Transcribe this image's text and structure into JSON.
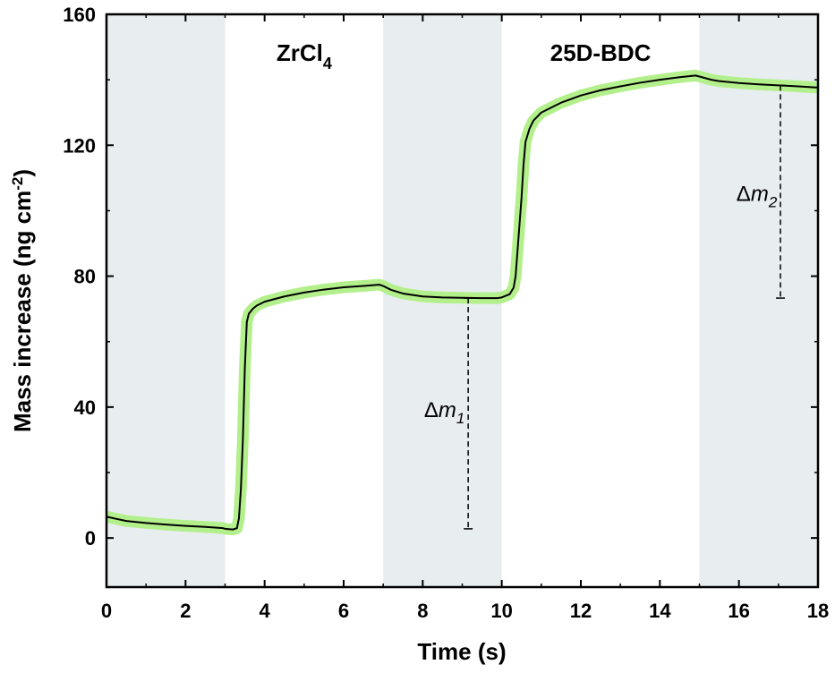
{
  "chart_data": {
    "type": "line",
    "title": "",
    "xlabel": "Time (s)",
    "ylabel": {
      "main": "Mass increase (ng cm",
      "sup": "-2",
      "close": ")"
    },
    "xlim": [
      0,
      18
    ],
    "ylim": [
      -15,
      160
    ],
    "xticks": [
      0,
      2,
      4,
      6,
      8,
      10,
      12,
      14,
      16,
      18
    ],
    "yticks": [
      0,
      40,
      80,
      120,
      160
    ],
    "shaded_intervals": [
      [
        0,
        3
      ],
      [
        7,
        10
      ],
      [
        15,
        18
      ]
    ],
    "shade_color": "#e8edf0",
    "line_color": "#000000",
    "band_color": "#b3f08c",
    "region_labels": [
      {
        "main": "ZrCl",
        "sub": "4",
        "x": 5.0
      },
      {
        "main": "25D-BDC",
        "sub": "",
        "x": 12.5
      }
    ],
    "series": [
      {
        "x": [
          0,
          0.5,
          1,
          1.5,
          2,
          2.5,
          2.95,
          3.0,
          3.2,
          3.3,
          3.35,
          3.4,
          3.45,
          3.5,
          3.55,
          3.6,
          3.7,
          3.8,
          4.0,
          4.5,
          5.0,
          5.5,
          6.0,
          6.5,
          6.9,
          7.0,
          7.2,
          7.5,
          8.0,
          8.5,
          9.0,
          9.5,
          9.9,
          10.0,
          10.2,
          10.3,
          10.35,
          10.4,
          10.5,
          10.55,
          10.6,
          10.7,
          10.8,
          11.0,
          11.5,
          12.0,
          12.5,
          13.0,
          13.5,
          14.0,
          14.5,
          14.9,
          15.0,
          15.3,
          15.5,
          16.0,
          16.5,
          17.0,
          17.5,
          18.0
        ],
        "y": [
          6.5,
          5.2,
          4.6,
          4.1,
          3.7,
          3.4,
          3.0,
          2.8,
          2.6,
          3.0,
          6.0,
          15.0,
          30.0,
          52.0,
          66.0,
          68.5,
          70.0,
          71.0,
          72.2,
          73.8,
          75.0,
          75.9,
          76.6,
          77.0,
          77.4,
          77.0,
          75.8,
          74.7,
          73.8,
          73.5,
          73.4,
          73.3,
          73.3,
          73.5,
          74.5,
          76.5,
          80.0,
          88.0,
          104.0,
          114.0,
          121.0,
          125.0,
          127.5,
          130.0,
          133.0,
          135.2,
          136.8,
          138.0,
          139.1,
          140.0,
          140.8,
          141.3,
          141.0,
          140.0,
          139.6,
          139.0,
          138.6,
          138.3,
          138.0,
          137.6
        ]
      }
    ],
    "annotations": [
      {
        "delta": "Δ",
        "var": "m",
        "sub": "1",
        "x_line": 9.15,
        "y_top": 73.3,
        "y_bottom": 2.8,
        "label_x": 8.55,
        "label_y": 37
      },
      {
        "delta": "Δ",
        "var": "m",
        "sub": "2",
        "x_line": 17.05,
        "y_top": 138.3,
        "y_bottom": 73.3,
        "label_x": 16.45,
        "label_y": 103
      }
    ]
  }
}
